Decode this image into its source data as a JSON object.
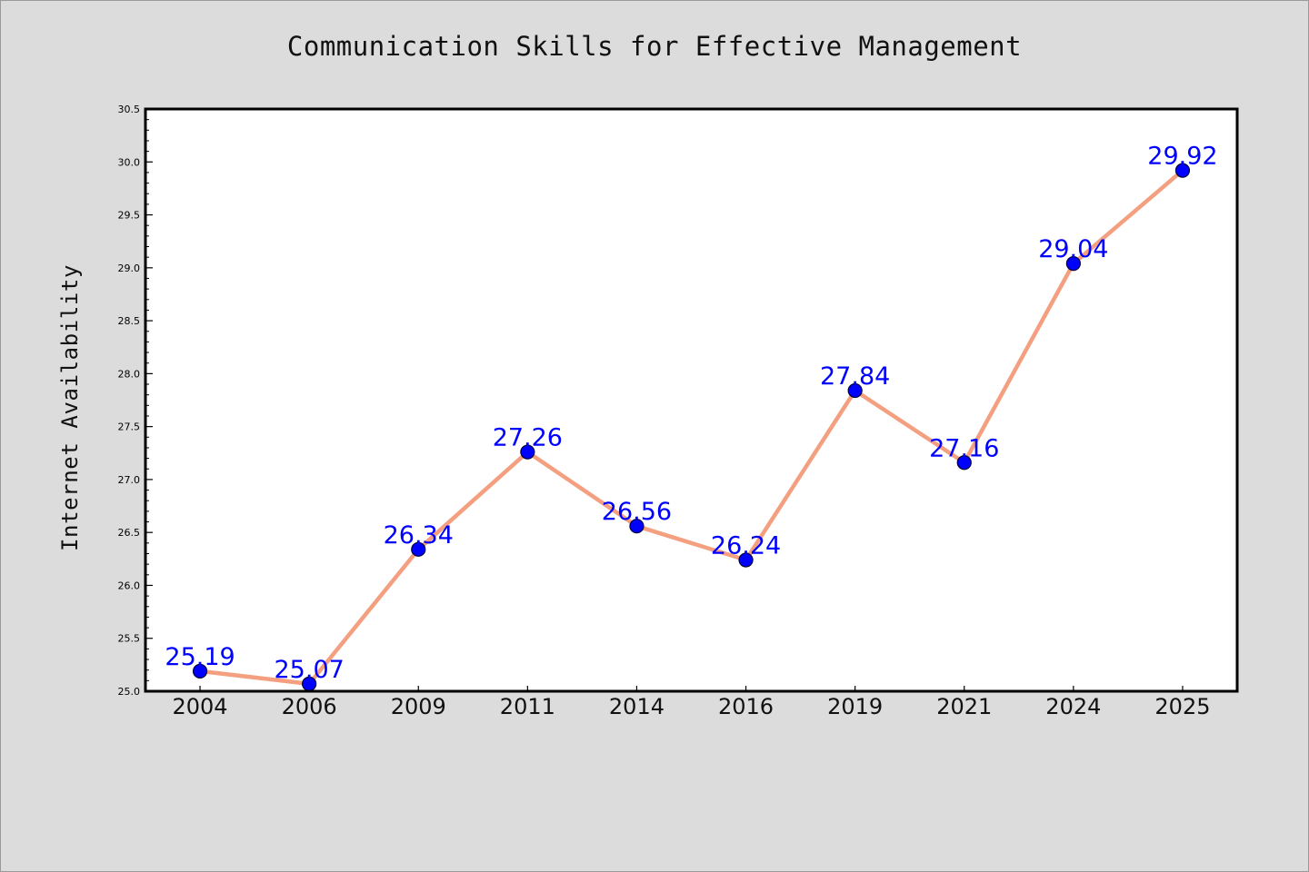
{
  "chart_data": {
    "type": "line",
    "title": "Communication Skills for Effective Management",
    "xlabel": "",
    "ylabel": "Internet Availability",
    "categories": [
      "2004",
      "2006",
      "2009",
      "2011",
      "2014",
      "2016",
      "2019",
      "2021",
      "2024",
      "2025"
    ],
    "values": [
      25.19,
      25.07,
      26.34,
      27.26,
      26.56,
      26.24,
      27.84,
      27.16,
      29.04,
      29.92
    ],
    "data_labels": [
      "25.19",
      "25.07",
      "26.34",
      "27.26",
      "26.56",
      "26.24",
      "27.84",
      "27.16",
      "29.04",
      "29.92"
    ],
    "ylim": [
      25.0,
      30.5
    ],
    "y_ticks": [
      "25.0",
      "25.5",
      "26.0",
      "26.5",
      "27.0",
      "27.5",
      "28.0",
      "28.5",
      "29.0",
      "29.5",
      "30.0",
      "30.5"
    ],
    "grid": false,
    "legend": "none",
    "colors": {
      "line": "#f4a080",
      "marker": "#0000ff",
      "label": "#0000ff",
      "background": "#dcdcdc",
      "plot_area": "#ffffff"
    }
  }
}
